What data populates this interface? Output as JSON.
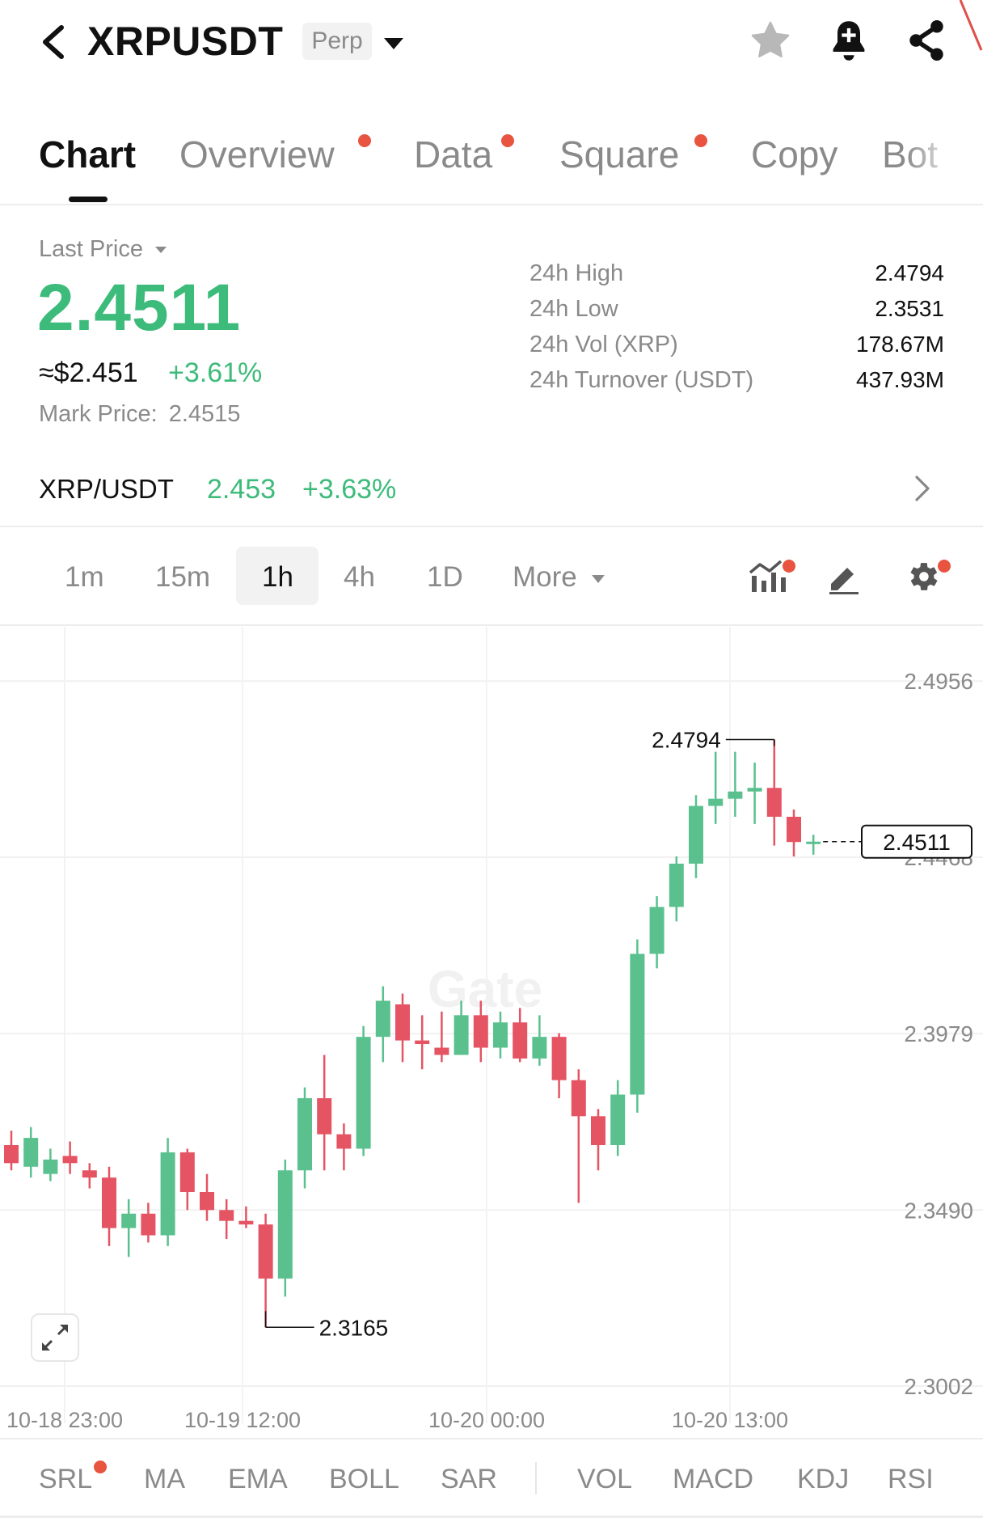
{
  "header": {
    "symbol": "XRPUSDT",
    "contract_type": "Perp",
    "icons": [
      "back-arrow-icon",
      "dropdown-caret-icon",
      "star-icon",
      "bell-plus-icon",
      "share-icon"
    ]
  },
  "tabs": [
    {
      "label": "Chart",
      "active": true,
      "dot": false
    },
    {
      "label": "Overview",
      "active": false,
      "dot": true
    },
    {
      "label": "Data",
      "active": false,
      "dot": true
    },
    {
      "label": "Square",
      "active": false,
      "dot": true
    },
    {
      "label": "Copy",
      "active": false,
      "dot": false
    },
    {
      "label": "Bot",
      "active": false,
      "dot": false
    }
  ],
  "price": {
    "last_label": "Last Price",
    "last": "2.4511",
    "approx_usd": "≈$2.451",
    "change_pct": "+3.61%",
    "mark_label": "Mark Price:",
    "mark_value": "2.4515"
  },
  "stats": [
    {
      "label": "24h High",
      "value": "2.4794"
    },
    {
      "label": "24h Low",
      "value": "2.3531"
    },
    {
      "label": "24h Vol (XRP)",
      "value": "178.67M"
    },
    {
      "label": "24h Turnover (USDT)",
      "value": "437.93M"
    }
  ],
  "spot": {
    "pair": "XRP/USDT",
    "price": "2.453",
    "change_pct": "+3.63%"
  },
  "intervals": {
    "items": [
      "1m",
      "15m",
      "1h",
      "4h",
      "1D"
    ],
    "selected": "1h",
    "more": "More"
  },
  "colors": {
    "up": "#5ac18e",
    "down": "#e45463",
    "accent_dot": "#e8543f",
    "price_green": "#3dbb7a"
  },
  "chart_data": {
    "type": "candlestick",
    "ylabels": [
      "2.4956",
      "2.3979",
      "2.3490",
      "2.3002"
    ],
    "y_ticks": [
      2.4956,
      2.4468,
      2.3979,
      2.349,
      2.3002
    ],
    "ylim": [
      2.2955,
      2.5017
    ],
    "xlabels": [
      "10-18 23:00",
      "10-19 12:00",
      "10-20 00:00",
      "10-20 13:00"
    ],
    "high_marker": "2.4794",
    "low_marker": "2.3165",
    "current_price": "2.4511",
    "grid": true,
    "candles": [
      [
        2.367,
        2.362,
        2.371,
        2.36
      ],
      [
        2.361,
        2.369,
        2.372,
        2.358
      ],
      [
        2.359,
        2.363,
        2.366,
        2.357
      ],
      [
        2.364,
        2.362,
        2.368,
        2.359
      ],
      [
        2.36,
        2.358,
        2.362,
        2.355
      ],
      [
        2.358,
        2.344,
        2.361,
        2.339
      ],
      [
        2.344,
        2.348,
        2.352,
        2.336
      ],
      [
        2.348,
        2.342,
        2.351,
        2.34
      ],
      [
        2.342,
        2.365,
        2.369,
        2.339
      ],
      [
        2.365,
        2.354,
        2.366,
        2.349
      ],
      [
        2.354,
        2.349,
        2.359,
        2.346
      ],
      [
        2.349,
        2.346,
        2.352,
        2.341
      ],
      [
        2.346,
        2.345,
        2.35,
        2.344
      ],
      [
        2.345,
        2.33,
        2.348,
        2.3165
      ],
      [
        2.33,
        2.36,
        2.363,
        2.325
      ],
      [
        2.36,
        2.38,
        2.383,
        2.355
      ],
      [
        2.38,
        2.37,
        2.392,
        2.36
      ],
      [
        2.37,
        2.366,
        2.373,
        2.36
      ],
      [
        2.366,
        2.397,
        2.4,
        2.364
      ],
      [
        2.397,
        2.407,
        2.411,
        2.39
      ],
      [
        2.406,
        2.396,
        2.409,
        2.39
      ],
      [
        2.396,
        2.395,
        2.403,
        2.388
      ],
      [
        2.394,
        2.392,
        2.404,
        2.39
      ],
      [
        2.392,
        2.403,
        2.407,
        2.392
      ],
      [
        2.403,
        2.394,
        2.407,
        2.39
      ],
      [
        2.394,
        2.401,
        2.404,
        2.391
      ],
      [
        2.401,
        2.391,
        2.405,
        2.39
      ],
      [
        2.391,
        2.397,
        2.403,
        2.389
      ],
      [
        2.397,
        2.385,
        2.398,
        2.38
      ],
      [
        2.385,
        2.375,
        2.388,
        2.351
      ],
      [
        2.375,
        2.367,
        2.377,
        2.36
      ],
      [
        2.367,
        2.381,
        2.385,
        2.364
      ],
      [
        2.381,
        2.42,
        2.424,
        2.376
      ],
      [
        2.42,
        2.433,
        2.436,
        2.416
      ],
      [
        2.433,
        2.445,
        2.447,
        2.429
      ],
      [
        2.445,
        2.461,
        2.464,
        2.441
      ],
      [
        2.461,
        2.463,
        2.476,
        2.456
      ],
      [
        2.463,
        2.465,
        2.476,
        2.458
      ],
      [
        2.465,
        2.466,
        2.473,
        2.456
      ],
      [
        2.466,
        2.458,
        2.4794,
        2.45
      ],
      [
        2.458,
        2.451,
        2.46,
        2.447
      ],
      [
        2.451,
        2.4511,
        2.453,
        2.4475
      ]
    ]
  },
  "indicators": {
    "main": [
      "SRL",
      "MA",
      "EMA",
      "BOLL",
      "SAR"
    ],
    "sub": [
      "VOL",
      "MACD",
      "KDJ",
      "RSI"
    ]
  }
}
